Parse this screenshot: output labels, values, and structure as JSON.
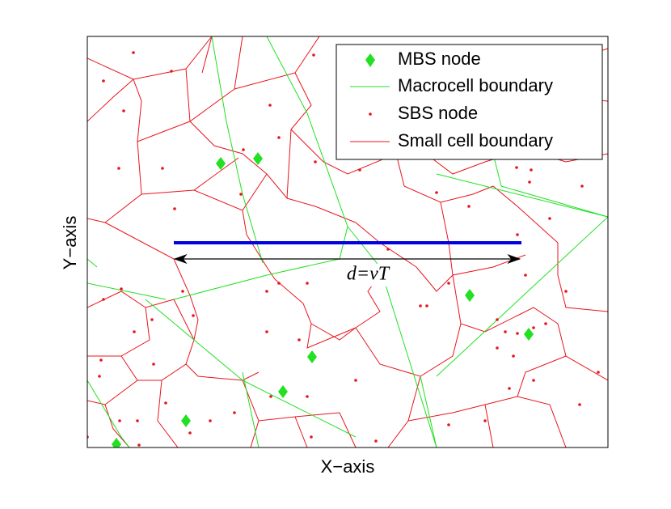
{
  "axis_labels": {
    "x": "X−axis",
    "y": "Y−axis"
  },
  "legend": [
    "MBS node",
    "Macrocell boundary",
    "SBS node",
    "Small cell boundary"
  ],
  "annotation": "d=vT"
}
